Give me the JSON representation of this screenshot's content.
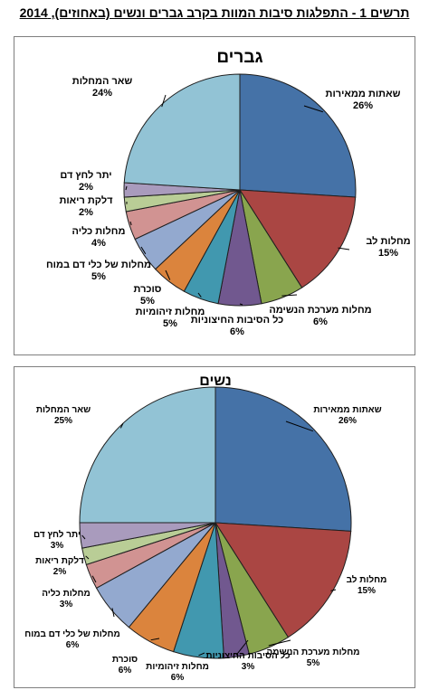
{
  "figure_title": "תרשים 1 - התפלגות סיבות המוות בקרב גברים ונשים (באחוזים), 2014",
  "chart_data": [
    {
      "type": "pie",
      "title": "גברים",
      "slices": [
        {
          "name": "שאתות ממאירות",
          "value": 26,
          "label": "26%",
          "color": "#4572a7"
        },
        {
          "name": "מחלות לב",
          "value": 15,
          "label": "15%",
          "color": "#aa4643"
        },
        {
          "name": "מחלות מערכת הנשימה",
          "value": 6,
          "label": "6%",
          "color": "#89a54e"
        },
        {
          "name": "כל הסיבות החיצוניות",
          "value": 6,
          "label": "6%",
          "color": "#71588f"
        },
        {
          "name": "מחלות זיהומיות",
          "value": 5,
          "label": "5%",
          "color": "#4198af"
        },
        {
          "name": "סוכרת",
          "value": 5,
          "label": "5%",
          "color": "#db843d"
        },
        {
          "name": "מחלות של כלי דם במוח",
          "value": 5,
          "label": "5%",
          "color": "#93a9cf"
        },
        {
          "name": "מחלות כליה",
          "value": 4,
          "label": "4%",
          "color": "#d19392"
        },
        {
          "name": "דלקת ריאות",
          "value": 2,
          "label": "2%",
          "color": "#b9cd96"
        },
        {
          "name": "יתר לחץ דם",
          "value": 2,
          "label": "2%",
          "color": "#a99bbd"
        },
        {
          "name": "שאר המחלות",
          "value": 24,
          "label": "24%",
          "color": "#92c3d5"
        }
      ]
    },
    {
      "type": "pie",
      "title": "נשים",
      "slices": [
        {
          "name": "שאתות ממאירות",
          "value": 26,
          "label": "26%",
          "color": "#4572a7"
        },
        {
          "name": "מחלות לב",
          "value": 15,
          "label": "15%",
          "color": "#aa4643"
        },
        {
          "name": "מחלות מערכת הנשימה",
          "value": 5,
          "label": "5%",
          "color": "#89a54e"
        },
        {
          "name": "כל הסיבות החיצוניות",
          "value": 3,
          "label": "3%",
          "color": "#71588f"
        },
        {
          "name": "מחלות זיהומיות",
          "value": 6,
          "label": "6%",
          "color": "#4198af"
        },
        {
          "name": "סוכרת",
          "value": 6,
          "label": "6%",
          "color": "#db843d"
        },
        {
          "name": "מחלות של כלי דם במוח",
          "value": 6,
          "label": "6%",
          "color": "#93a9cf"
        },
        {
          "name": "מחלות כליה",
          "value": 3,
          "label": "3%",
          "color": "#d19392"
        },
        {
          "name": "דלקת ריאות",
          "value": 2,
          "label": "2%",
          "color": "#b9cd96"
        },
        {
          "name": "יתר לחץ דם",
          "value": 3,
          "label": "3%",
          "color": "#a99bbd"
        },
        {
          "name": "שאר המחלות",
          "value": 25,
          "label": "25%",
          "color": "#92c3d5"
        }
      ]
    }
  ]
}
